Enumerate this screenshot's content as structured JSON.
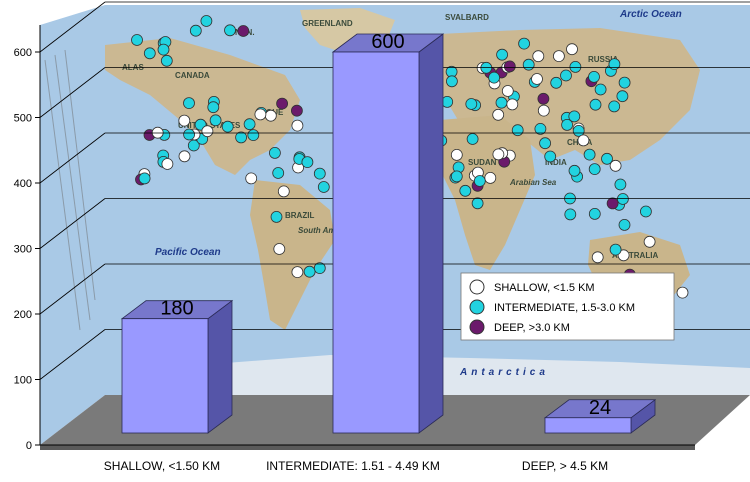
{
  "chart_data": {
    "type": "bar",
    "categories": [
      "SHALLOW, <1.50 KM",
      "INTERMEDIATE: 1.51 - 4.49 KM",
      "DEEP, > 4.5 KM"
    ],
    "values": [
      180,
      600,
      24
    ],
    "value_labels": [
      "180",
      "600",
      "24"
    ],
    "ylim": [
      0,
      600
    ],
    "yticks": [
      0,
      100,
      200,
      300,
      400,
      500,
      600
    ],
    "grid": true,
    "bar_color": "#9999ff",
    "background": "world map with site markers",
    "legend": {
      "placement": "right",
      "entries": [
        {
          "label": "SHALLOW, <1.5 KM",
          "color": "#ffffff"
        },
        {
          "label": "INTERMEDIATE, 1.5-3.0 KM",
          "color": "#22d3e0"
        },
        {
          "label": "DEEP, >3.0 KM",
          "color": "#6b1a6b"
        }
      ]
    },
    "map_labels": {
      "arctic_ocean": "Arctic Ocean",
      "pacific_ocean": "Pacific Ocean",
      "antarctica": "Antarctica",
      "greenland": "GREENLAND",
      "svalbard": "SVALBARD",
      "russia": "RUSSIA",
      "canada": "CANADA",
      "united_states": "UNITED STATES",
      "brazil": "BRAZIL",
      "south_america": "South America",
      "china": "CHINA",
      "india": "INDIA",
      "sudan": "SUDAN",
      "arabian_sea": "Arabian Sea",
      "australia": "AUSTRALIA",
      "alas": "ALAS",
      "que": "QUE",
      "nun": "NUN."
    }
  }
}
